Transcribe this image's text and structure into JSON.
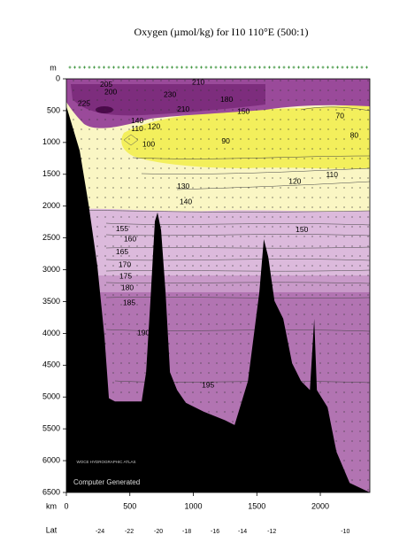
{
  "chart_data": {
    "type": "section",
    "title": "Oxygen (µmol/kg) for I10 110°E (500:1)",
    "y_label": "m",
    "x_label": "km",
    "xlim": [
      0,
      2390
    ],
    "xticks": [
      0,
      500,
      1000,
      1500,
      2000
    ],
    "ylim": [
      0,
      6500
    ],
    "yticks": [
      0,
      500,
      1000,
      1500,
      2000,
      2500,
      3000,
      3500,
      4000,
      4500,
      5000,
      5500,
      6000,
      6500
    ],
    "lat_axis": {
      "label": "Lat",
      "ticks": [
        {
          "km": 265,
          "lat": -24
        },
        {
          "km": 495,
          "lat": -22
        },
        {
          "km": 725,
          "lat": -20
        },
        {
          "km": 948,
          "lat": -18
        },
        {
          "km": 1171,
          "lat": -16
        },
        {
          "km": 1387,
          "lat": -14
        },
        {
          "km": 1618,
          "lat": -12
        },
        {
          "km": 2197,
          "lat": -10
        }
      ]
    },
    "bathymetry": {
      "x": [
        0,
        105,
        174,
        244,
        300,
        335,
        383,
        593,
        628,
        662,
        697,
        718,
        746,
        781,
        816,
        872,
        941,
        1081,
        1255,
        1325,
        1430,
        1520,
        1555,
        1590,
        1639,
        1708,
        1778,
        1848,
        1918,
        1952,
        1973,
        2057,
        2127,
        2231,
        2390
      ],
      "depth": [
        430,
        1130,
        1960,
        2940,
        4050,
        5020,
        5070,
        5070,
        4610,
        3490,
        2240,
        2100,
        2380,
        3350,
        4610,
        4890,
        5090,
        5230,
        5370,
        5440,
        4750,
        3350,
        2520,
        2800,
        3490,
        3770,
        4470,
        4750,
        4890,
        3770,
        4890,
        5160,
        5860,
        6350,
        6500
      ]
    },
    "contour_labels": [
      {
        "value": 205,
        "km": 314,
        "depth": 97
      },
      {
        "value": 200,
        "km": 349,
        "depth": 209
      },
      {
        "value": 225,
        "km": 139,
        "depth": 390
      },
      {
        "value": 210,
        "km": 1039,
        "depth": 56
      },
      {
        "value": 230,
        "km": 816,
        "depth": 251
      },
      {
        "value": 210,
        "km": 921,
        "depth": 487
      },
      {
        "value": 180,
        "km": 1262,
        "depth": 334
      },
      {
        "value": 150,
        "km": 1395,
        "depth": 515
      },
      {
        "value": 140,
        "km": 558,
        "depth": 668
      },
      {
        "value": 120,
        "km": 690,
        "depth": 752
      },
      {
        "value": 110,
        "km": 558,
        "depth": 793
      },
      {
        "value": 100,
        "km": 648,
        "depth": 1030
      },
      {
        "value": 90,
        "km": 1255,
        "depth": 988
      },
      {
        "value": 70,
        "km": 2155,
        "depth": 585
      },
      {
        "value": 80,
        "km": 2267,
        "depth": 891
      },
      {
        "value": 130,
        "km": 921,
        "depth": 1698
      },
      {
        "value": 140,
        "km": 941,
        "depth": 1935
      },
      {
        "value": 120,
        "km": 1800,
        "depth": 1615
      },
      {
        "value": 110,
        "km": 2092,
        "depth": 1517
      },
      {
        "value": 150,
        "km": 1855,
        "depth": 2380
      },
      {
        "value": 155,
        "km": 439,
        "depth": 2366
      },
      {
        "value": 160,
        "km": 502,
        "depth": 2520
      },
      {
        "value": 165,
        "km": 439,
        "depth": 2728
      },
      {
        "value": 170,
        "km": 460,
        "depth": 2923
      },
      {
        "value": 175,
        "km": 467,
        "depth": 3104
      },
      {
        "value": 180,
        "km": 481,
        "depth": 3285
      },
      {
        "value": 185,
        "km": 495,
        "depth": 3522
      },
      {
        "value": 190,
        "km": 607,
        "depth": 3995
      },
      {
        "value": 195,
        "km": 1116,
        "depth": 4816
      }
    ],
    "logo": "WOCE HYDROGRAPHIC ATLAS",
    "footer": "Computer Generated"
  }
}
